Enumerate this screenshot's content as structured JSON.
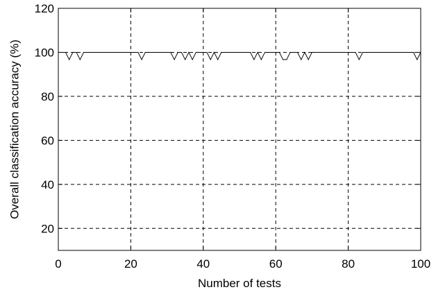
{
  "chart_data": {
    "type": "line",
    "xlabel": "Number of tests",
    "ylabel": "Overall classification accuracy (%)",
    "xlim": [
      0,
      100
    ],
    "ylim": [
      10,
      120
    ],
    "xticks": [
      0,
      20,
      40,
      60,
      80,
      100
    ],
    "yticks": [
      20,
      40,
      60,
      80,
      100,
      120
    ],
    "grid": "dashed",
    "line_color": "#000000",
    "series": [
      {
        "x": [
          1,
          2,
          3,
          4,
          5,
          6,
          7,
          8,
          9,
          10,
          11,
          12,
          13,
          14,
          15,
          16,
          17,
          18,
          19,
          20,
          21,
          22,
          23,
          24,
          25,
          26,
          27,
          28,
          29,
          30,
          31,
          32,
          33,
          34,
          35,
          36,
          37,
          38,
          39,
          40,
          41,
          42,
          43,
          44,
          45,
          46,
          47,
          48,
          49,
          50,
          51,
          52,
          53,
          54,
          55,
          56,
          57,
          58,
          59,
          60,
          61,
          62,
          63,
          64,
          65,
          66,
          67,
          68,
          69,
          70,
          71,
          72,
          73,
          74,
          75,
          76,
          77,
          78,
          79,
          80,
          81,
          82,
          83,
          84,
          85,
          86,
          87,
          88,
          89,
          90,
          91,
          92,
          93,
          94,
          95,
          96,
          97,
          98,
          99,
          100
        ],
        "values": [
          100,
          100,
          96.7,
          100,
          100,
          96.7,
          100,
          100,
          100,
          100,
          100,
          100,
          100,
          100,
          100,
          100,
          100,
          100,
          100,
          100,
          100,
          100,
          96.7,
          100,
          100,
          100,
          100,
          100,
          100,
          100,
          100,
          96.7,
          100,
          100,
          96.7,
          100,
          96.7,
          100,
          100,
          100,
          100,
          96.7,
          100,
          96.7,
          100,
          100,
          100,
          100,
          100,
          100,
          100,
          100,
          100,
          96.7,
          100,
          96.7,
          100,
          100,
          100,
          100,
          100,
          96.7,
          96.7,
          100,
          100,
          100,
          96.7,
          100,
          96.7,
          100,
          100,
          100,
          100,
          100,
          100,
          100,
          100,
          100,
          100,
          100,
          100,
          100,
          96.7,
          100,
          100,
          100,
          100,
          100,
          100,
          100,
          100,
          100,
          100,
          100,
          100,
          100,
          100,
          100,
          96.7,
          100
        ]
      }
    ]
  }
}
